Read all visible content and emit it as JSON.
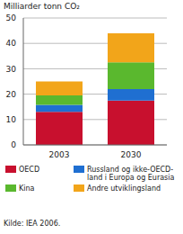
{
  "chart_data": {
    "type": "bar",
    "stacked": true,
    "y_label": "Milliarder tonn CO₂",
    "source": "Kilde: IEA 2006.",
    "categories": [
      "2003",
      "2030"
    ],
    "series": [
      {
        "name": "OECD",
        "color": "#c8102e",
        "values": [
          13,
          17.5
        ]
      },
      {
        "name": "Russland og ikke-OECD-land i Europa og Eurasia",
        "color": "#1f6fd1",
        "values": [
          2.8,
          4.5
        ]
      },
      {
        "name": "Kina",
        "color": "#5ab82e",
        "values": [
          3.7,
          10.5
        ]
      },
      {
        "name": "Andre utviklingsland",
        "color": "#f2a51a",
        "values": [
          5.5,
          11.5
        ]
      }
    ],
    "ylim": [
      0,
      50
    ],
    "yticks": [
      0,
      10,
      20,
      30,
      40,
      50
    ],
    "grid": true
  }
}
